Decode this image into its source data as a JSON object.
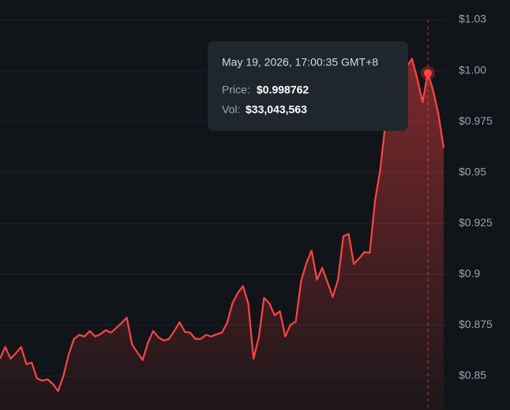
{
  "chart_data": {
    "type": "line",
    "values": [
      0.8585,
      0.8643,
      0.8585,
      0.8612,
      0.8643,
      0.8558,
      0.8566,
      0.8488,
      0.8477,
      0.8484,
      0.8461,
      0.8426,
      0.85,
      0.8605,
      0.8682,
      0.8702,
      0.8694,
      0.8721,
      0.8694,
      0.8705,
      0.8725,
      0.8713,
      0.8736,
      0.876,
      0.8787,
      0.8655,
      0.8616,
      0.8578,
      0.8663,
      0.8721,
      0.869,
      0.8674,
      0.8682,
      0.8721,
      0.8764,
      0.8717,
      0.8713,
      0.8682,
      0.8682,
      0.8702,
      0.8694,
      0.8705,
      0.8713,
      0.876,
      0.8857,
      0.8907,
      0.8942,
      0.8857,
      0.8585,
      0.869,
      0.8884,
      0.8857,
      0.8798,
      0.8818,
      0.8694,
      0.8752,
      0.8767,
      0.8965,
      0.9054,
      0.9116,
      0.8973,
      0.9031,
      0.8961,
      0.8888,
      0.8973,
      0.9186,
      0.9198,
      0.905,
      0.9078,
      0.9109,
      0.9105,
      0.936,
      0.9516,
      0.9748,
      1.0,
      1.0047,
      1.0039,
      1.0019,
      1.0058,
      0.9961,
      0.9845,
      0.998762,
      0.9903,
      0.9787,
      0.962
    ],
    "value_labels": [
      null,
      null,
      null,
      null,
      null,
      null,
      null,
      null,
      null,
      null,
      null,
      null,
      null,
      null,
      null,
      null,
      null,
      null,
      null,
      null,
      null,
      null,
      null,
      null,
      null,
      null,
      null,
      null,
      null,
      null,
      null,
      null,
      null,
      null,
      null,
      null,
      null,
      null,
      null,
      null,
      null,
      null,
      null,
      null,
      null,
      null,
      null,
      null,
      null,
      null,
      null,
      null,
      null,
      null,
      null,
      null,
      null,
      null,
      null,
      null,
      null,
      null,
      null,
      null,
      null,
      null,
      null,
      null,
      null,
      null,
      null,
      null,
      null,
      null,
      null,
      null,
      null,
      null,
      null,
      null,
      null,
      "$0.998762",
      null,
      null,
      null
    ],
    "color": "#ff4444",
    "ylim": [
      0.8333,
      1.0347
    ],
    "yticks": [
      {
        "value": 0.85,
        "label": "$0.85"
      },
      {
        "value": 0.875,
        "label": "$0.875"
      },
      {
        "value": 0.9,
        "label": "$0.9"
      },
      {
        "value": 0.925,
        "label": "$0.925"
      },
      {
        "value": 0.95,
        "label": "$0.95"
      },
      {
        "value": 0.975,
        "label": "$0.975"
      },
      {
        "value": 1.0,
        "label": "$1.00"
      },
      {
        "value": 1.025,
        "label": "$1.03"
      }
    ],
    "grid": true,
    "tooltip": {
      "date": "May 19, 2026, 17:00:35 GMT+8",
      "price_label": "Price:",
      "vol_label": "Vol:",
      "vol_value": "$33,043,563"
    }
  }
}
